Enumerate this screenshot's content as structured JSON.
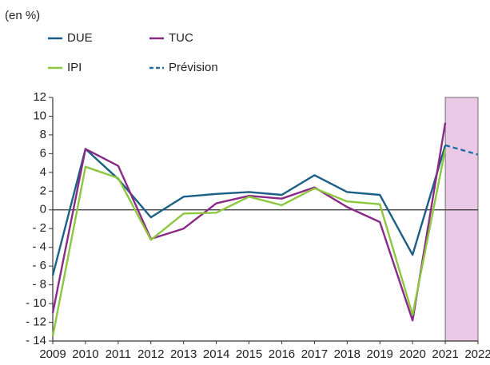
{
  "chart_data": {
    "type": "line",
    "unit_label": "(en %)",
    "x": [
      2009,
      2010,
      2011,
      2012,
      2013,
      2014,
      2015,
      2016,
      2017,
      2018,
      2019,
      2020,
      2021,
      2022
    ],
    "series": [
      {
        "name": "DUE",
        "color": "#1b5e86",
        "dashed": false,
        "values": [
          -7,
          6.5,
          3.3,
          -0.8,
          1.4,
          1.7,
          1.9,
          1.6,
          3.7,
          1.9,
          1.6,
          -4.8,
          6.9,
          null
        ]
      },
      {
        "name": "TUC",
        "color": "#8a2a86",
        "dashed": false,
        "values": [
          -11,
          6.5,
          4.7,
          -3.1,
          -2,
          0.7,
          1.5,
          1.2,
          2.4,
          0.3,
          -1.3,
          -11.8,
          9.3,
          null
        ]
      },
      {
        "name": "IPI",
        "color": "#8dc63f",
        "dashed": false,
        "values": [
          -13.5,
          4.6,
          3.4,
          -3.2,
          -0.4,
          -0.3,
          1.4,
          0.5,
          2.3,
          0.9,
          0.6,
          -11.2,
          6.5,
          null
        ]
      },
      {
        "name": "Prévision",
        "color": "#1b6fa6",
        "dashed": true,
        "values": [
          null,
          null,
          null,
          null,
          null,
          null,
          null,
          null,
          null,
          null,
          null,
          null,
          6.9,
          5.9
        ]
      }
    ],
    "xlim": [
      2009,
      2022
    ],
    "xticks": [
      2009,
      2010,
      2011,
      2012,
      2013,
      2014,
      2015,
      2016,
      2017,
      2018,
      2019,
      2020,
      2021,
      2022
    ],
    "ylim": [
      -14,
      12
    ],
    "yticks": [
      {
        "value": -14,
        "label": "- 14"
      },
      {
        "value": -12,
        "label": "- 12"
      },
      {
        "value": -10,
        "label": "- 10"
      },
      {
        "value": -8,
        "label": "- 8"
      },
      {
        "value": -6,
        "label": "- 6"
      },
      {
        "value": -4,
        "label": "- 4"
      },
      {
        "value": -2,
        "label": "- 2"
      },
      0,
      2,
      4,
      6,
      8,
      10,
      12
    ],
    "shaded_xrange": [
      2021,
      2022
    ],
    "shade_color": "#e9c9e6"
  }
}
